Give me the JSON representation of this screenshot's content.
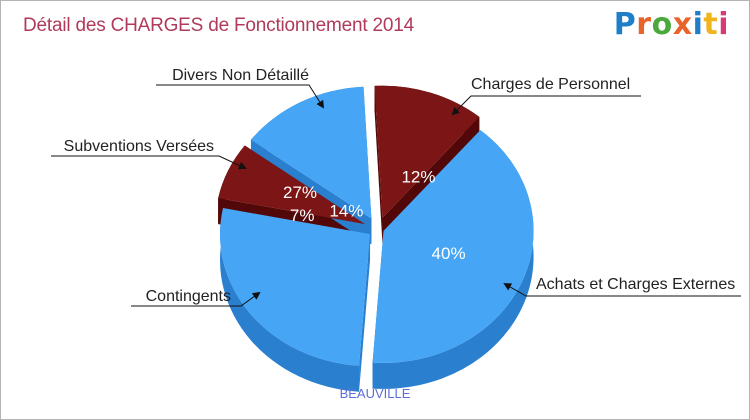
{
  "title": "Détail des CHARGES de Fonctionnement 2014",
  "logo": {
    "letters": [
      "P",
      "r",
      "o",
      "x",
      "i",
      "t",
      "i"
    ],
    "colors": [
      "#1f7ec8",
      "#e9642a",
      "#4aa93c",
      "#e9642a",
      "#1f7ec8",
      "#f0b51a",
      "#d63a7a"
    ]
  },
  "city": "BEAUVILLE",
  "colors": {
    "blue": "#46a6f5",
    "blue_dark": "#2a7fce",
    "red": "#7c1515",
    "red_dark": "#520808"
  },
  "chart_data": {
    "type": "pie",
    "title": "Détail des CHARGES de Fonctionnement 2014",
    "slices": [
      {
        "label": "Charges de Personnel",
        "percent": 12,
        "value_label": "12%",
        "color": "red"
      },
      {
        "label": "Achats et Charges Externes",
        "percent": 40,
        "value_label": "40%",
        "color": "blue"
      },
      {
        "label": "Contingents",
        "percent": 27,
        "value_label": "27%",
        "color": "blue"
      },
      {
        "label": "Subventions Versées",
        "percent": 7,
        "value_label": "7%",
        "color": "red"
      },
      {
        "label": "Divers Non Détaillé",
        "percent": 14,
        "value_label": "14%",
        "color": "blue"
      }
    ]
  }
}
